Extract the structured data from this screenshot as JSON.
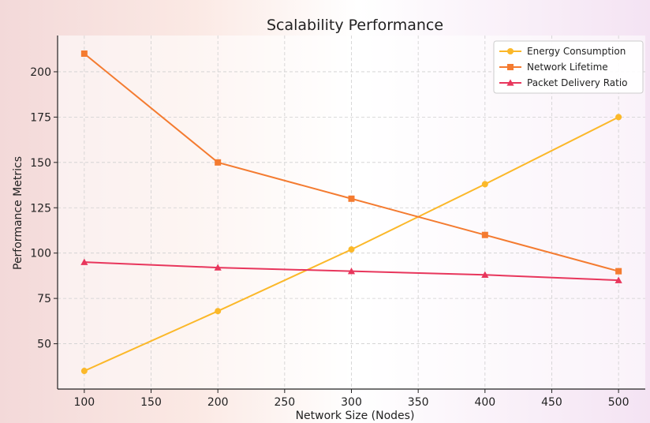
{
  "chart_data": {
    "type": "line",
    "title": "Scalability Performance",
    "xlabel": "Network Size (Nodes)",
    "ylabel": "Performance Metrics",
    "x": [
      100,
      200,
      300,
      400,
      500
    ],
    "xlim": [
      80,
      520
    ],
    "ylim": [
      25,
      220
    ],
    "xticks": [
      100,
      150,
      200,
      250,
      300,
      350,
      400,
      450,
      500
    ],
    "yticks": [
      50,
      75,
      100,
      125,
      150,
      175,
      200
    ],
    "grid": true,
    "legend_position": "top-right",
    "series": [
      {
        "name": "Energy Consumption",
        "color": "#fbb829",
        "marker": "circle",
        "values": [
          35,
          68,
          102,
          138,
          175
        ]
      },
      {
        "name": "Network Lifetime",
        "color": "#f47b30",
        "marker": "square",
        "values": [
          210,
          150,
          130,
          110,
          90
        ]
      },
      {
        "name": "Packet Delivery Ratio",
        "color": "#e8365c",
        "marker": "triangle",
        "values": [
          95,
          92,
          90,
          88,
          85
        ]
      }
    ]
  }
}
